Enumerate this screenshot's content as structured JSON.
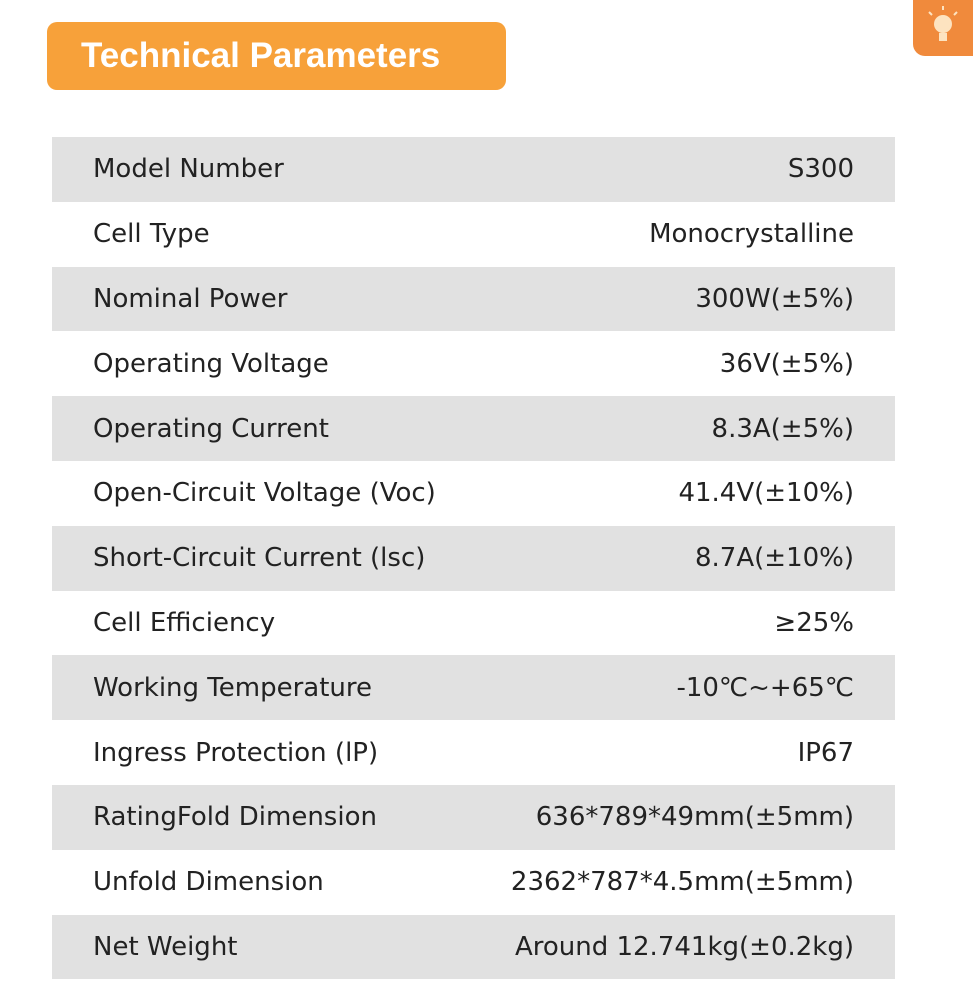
{
  "header": {
    "title": "Technical Parameters"
  },
  "table": {
    "rows": [
      [
        "Model Number",
        "S300"
      ],
      [
        "Cell Type",
        "Monocrystalline"
      ],
      [
        "Nominal Power",
        "300W(±5%)"
      ],
      [
        "Operating Voltage",
        "36V(±5%)"
      ],
      [
        "Operating Current",
        "8.3A(±5%)"
      ],
      [
        "Open-Circuit Voltage (Voc)",
        "41.4V(±10%)"
      ],
      [
        "Short-Circuit Current (lsc)",
        "8.7A(±10%)"
      ],
      [
        "Cell Efficiency",
        "≥25%"
      ],
      [
        "Working Temperature",
        "-10℃~+65℃"
      ],
      [
        "Ingress Protection (lP)",
        "IP67"
      ],
      [
        "RatingFold Dimension",
        "636*789*49mm(±5mm)"
      ],
      [
        "Unfold Dimension",
        "2362*787*4.5mm(±5mm)"
      ],
      [
        "Net Weight",
        "Around 12.741kg(±0.2kg)"
      ]
    ]
  }
}
